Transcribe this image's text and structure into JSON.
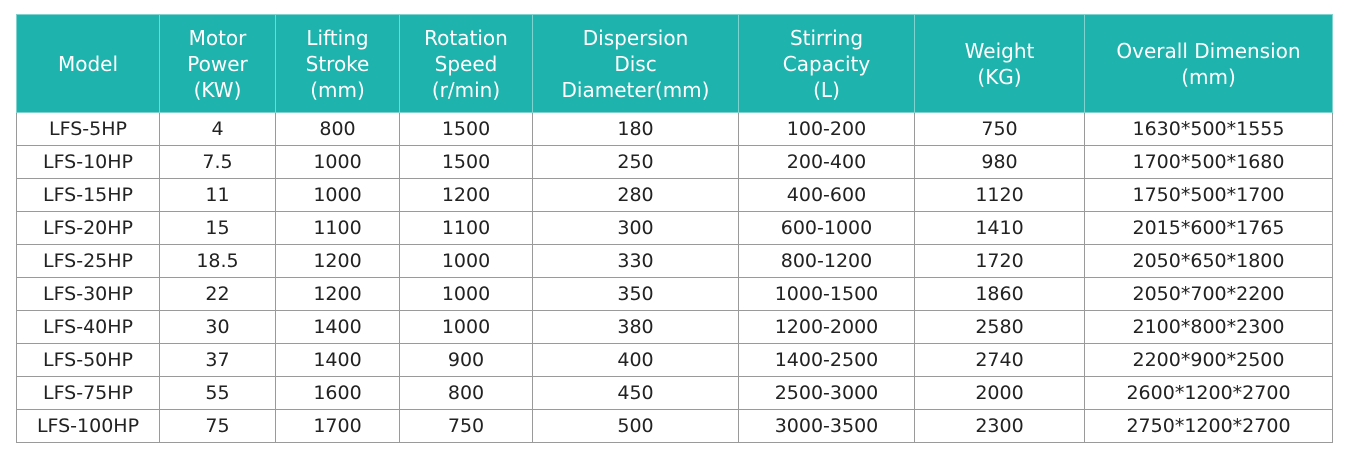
{
  "colors": {
    "header_bg": "#1fb3ad",
    "header_text": "#ffffff",
    "border": "#9a9a9a"
  },
  "table": {
    "headers": [
      "Model",
      "Motor\nPower\n(KW)",
      "Lifting\nStroke\n(mm)",
      "Rotation\nSpeed\n(r/min)",
      "Dispersion\nDisc\nDiameter(mm)",
      "Stirring\nCapacity\n(L)",
      "Weight\n(KG)",
      "Overall Dimension\n(mm)"
    ],
    "rows": [
      [
        "LFS-5HP",
        "4",
        "800",
        "1500",
        "180",
        "100-200",
        "750",
        "1630*500*1555"
      ],
      [
        "LFS-10HP",
        "7.5",
        "1000",
        "1500",
        "250",
        "200-400",
        "980",
        "1700*500*1680"
      ],
      [
        "LFS-15HP",
        "11",
        "1000",
        "1200",
        "280",
        "400-600",
        "1120",
        "1750*500*1700"
      ],
      [
        "LFS-20HP",
        "15",
        "1100",
        "1100",
        "300",
        "600-1000",
        "1410",
        "2015*600*1765"
      ],
      [
        "LFS-25HP",
        "18.5",
        "1200",
        "1000",
        "330",
        "800-1200",
        "1720",
        "2050*650*1800"
      ],
      [
        "LFS-30HP",
        "22",
        "1200",
        "1000",
        "350",
        "1000-1500",
        "1860",
        "2050*700*2200"
      ],
      [
        "LFS-40HP",
        "30",
        "1400",
        "1000",
        "380",
        "1200-2000",
        "2580",
        "2100*800*2300"
      ],
      [
        "LFS-50HP",
        "37",
        "1400",
        "900",
        "400",
        "1400-2500",
        "2740",
        "2200*900*2500"
      ],
      [
        "LFS-75HP",
        "55",
        "1600",
        "800",
        "450",
        "2500-3000",
        "2000",
        "2600*1200*2700"
      ],
      [
        "LFS-100HP",
        "75",
        "1700",
        "750",
        "500",
        "3000-3500",
        "2300",
        "2750*1200*2700"
      ]
    ]
  }
}
